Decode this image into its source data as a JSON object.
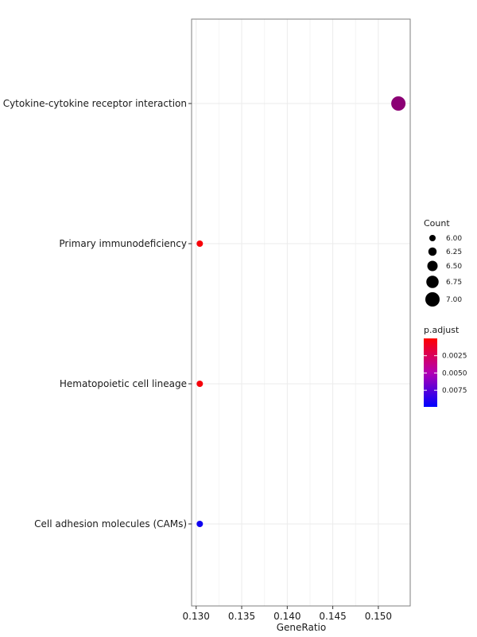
{
  "chart_data": {
    "type": "scatter",
    "title": "",
    "xlabel": "GeneRatio",
    "ylabel": "",
    "xlim": [
      0.1295,
      0.1535
    ],
    "xticks": [
      0.13,
      0.135,
      0.14,
      0.145,
      0.15
    ],
    "xtick_labels": [
      "0.130",
      "0.135",
      "0.140",
      "0.145",
      "0.150"
    ],
    "grid": true,
    "legend_position": "right",
    "categories": [
      "Cytokine-cytokine receptor interaction",
      "Primary immunodeficiency",
      "Hematopoietic cell lineage",
      "Cell adhesion molecules (CAMs)"
    ],
    "points": [
      {
        "category": "Cytokine-cytokine receptor interaction",
        "gene_ratio": 0.1522,
        "count": 7,
        "p_adjust": 0.0045
      },
      {
        "category": "Primary immunodeficiency",
        "gene_ratio": 0.1304,
        "count": 6,
        "p_adjust": 0.0003
      },
      {
        "category": "Hematopoietic cell lineage",
        "gene_ratio": 0.1304,
        "count": 6,
        "p_adjust": 0.0004
      },
      {
        "category": "Cell adhesion molecules (CAMs)",
        "gene_ratio": 0.1304,
        "count": 6,
        "p_adjust": 0.0093
      }
    ],
    "size_legend": {
      "title": "Count",
      "values": [
        6.0,
        6.25,
        6.5,
        6.75,
        7.0
      ],
      "labels": [
        "6.00",
        "6.25",
        "6.50",
        "6.75",
        "7.00"
      ]
    },
    "color_legend": {
      "title": "p.adjust",
      "range": [
        0.0,
        0.0099
      ],
      "ticks": [
        0.0025,
        0.005,
        0.0075
      ],
      "labels": [
        "0.0025",
        "0.0050",
        "0.0075"
      ],
      "low_color": "#ff0000",
      "high_color": "#0000ff"
    }
  }
}
